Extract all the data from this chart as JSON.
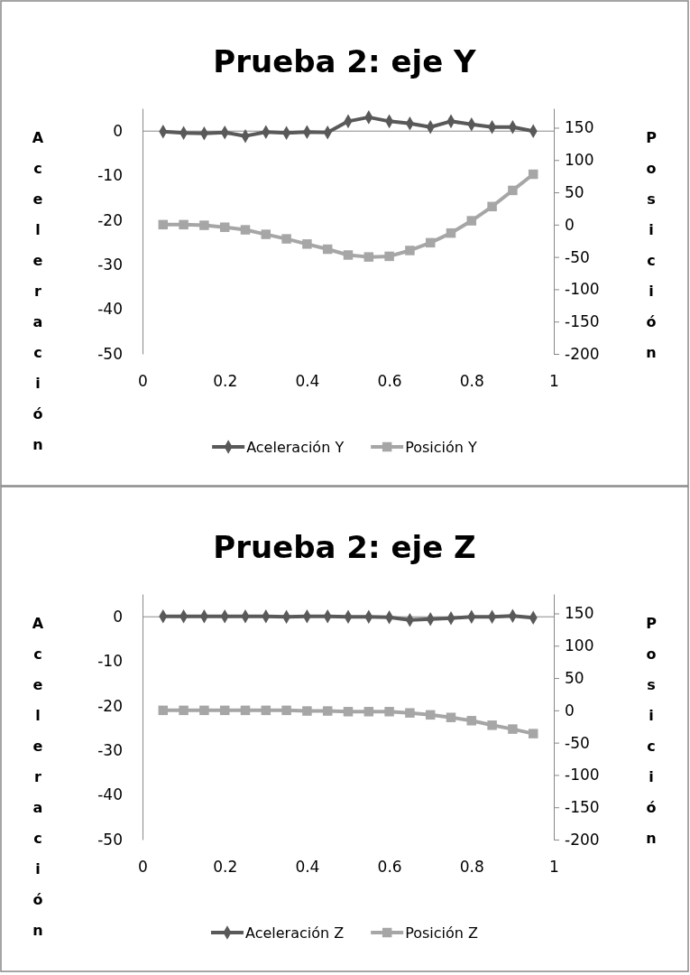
{
  "chart_data": [
    {
      "type": "line",
      "title": "Prueba 2: eje Y",
      "ylabel": "Aceleración",
      "y2label": "Posición",
      "x": [
        0.05,
        0.1,
        0.15,
        0.2,
        0.25,
        0.3,
        0.35,
        0.4,
        0.45,
        0.5,
        0.55,
        0.6,
        0.65,
        0.7,
        0.75,
        0.8,
        0.85,
        0.9,
        0.95
      ],
      "series": [
        {
          "name": "Aceleración Y",
          "color": "#595959",
          "marker": "diamond",
          "values": [
            -0.2,
            -0.5,
            -0.6,
            -0.4,
            -1.2,
            -0.3,
            -0.5,
            -0.3,
            -0.4,
            2.1,
            3.0,
            2.1,
            1.6,
            0.8,
            2.1,
            1.4,
            0.8,
            0.8,
            -0.1
          ]
        },
        {
          "name": "Posición Y",
          "color": "#a6a6a6",
          "marker": "square",
          "axis": "y2",
          "values": [
            0,
            0,
            -1,
            -4,
            -8,
            -15,
            -22,
            -30,
            -38,
            -47,
            -50,
            -49,
            -40,
            -28,
            -13,
            6,
            28,
            53,
            78
          ]
        }
      ],
      "xlim": [
        0,
        1
      ],
      "xticks": [
        0,
        0.2,
        0.4,
        0.6,
        0.8,
        1
      ],
      "ylim": [
        -50,
        5
      ],
      "yticks": [
        -50,
        -40,
        -30,
        -20,
        -10,
        0
      ],
      "y2lim": [
        -200,
        180
      ],
      "y2ticks": [
        -200,
        -150,
        -100,
        -50,
        0,
        50,
        100,
        150
      ],
      "legend": "bottom"
    },
    {
      "type": "line",
      "title": "Prueba 2: eje Z",
      "ylabel": "Aceleración",
      "y2label": "Posición",
      "x": [
        0.05,
        0.1,
        0.15,
        0.2,
        0.25,
        0.3,
        0.35,
        0.4,
        0.45,
        0.5,
        0.55,
        0.6,
        0.65,
        0.7,
        0.75,
        0.8,
        0.85,
        0.9,
        0.95
      ],
      "series": [
        {
          "name": "Aceleración Z",
          "color": "#595959",
          "marker": "diamond",
          "values": [
            0,
            0,
            0,
            0,
            0,
            0,
            -0.1,
            0,
            0,
            -0.1,
            -0.1,
            -0.2,
            -0.8,
            -0.6,
            -0.4,
            -0.1,
            -0.1,
            0.1,
            -0.3
          ]
        },
        {
          "name": "Posición Z",
          "color": "#a6a6a6",
          "marker": "square",
          "axis": "y2",
          "values": [
            0,
            0,
            0,
            0,
            0,
            0,
            0,
            -1,
            -1,
            -2,
            -2,
            -2,
            -4,
            -7,
            -11,
            -16,
            -23,
            -29,
            -36
          ]
        }
      ],
      "xlim": [
        0,
        1
      ],
      "xticks": [
        0,
        0.2,
        0.4,
        0.6,
        0.8,
        1
      ],
      "ylim": [
        -50,
        5
      ],
      "yticks": [
        -50,
        -40,
        -30,
        -20,
        -10,
        0
      ],
      "y2lim": [
        -200,
        180
      ],
      "y2ticks": [
        -200,
        -150,
        -100,
        -50,
        0,
        50,
        100,
        150
      ],
      "legend": "bottom"
    }
  ]
}
